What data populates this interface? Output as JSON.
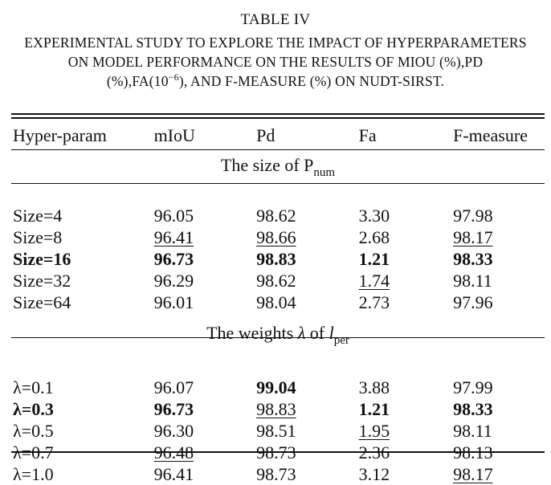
{
  "caption": {
    "title": "TABLE IV",
    "line1": "EXPERIMENTAL STUDY TO EXPLORE THE IMPACT OF HYPERPARAMETERS",
    "line2": "ON MODEL PERFORMANCE ON THE RESULTS OF MIOU (%),PD",
    "line3_pre": "(%),FA(10",
    "line3_sup": "−6",
    "line3_post": "), AND F-MEASURE (%) ON NUDT-SIRST."
  },
  "table": {
    "headers": [
      "Hyper-param",
      "mIoU",
      "Pd",
      "Fa",
      "F-measure"
    ],
    "section1": {
      "label": "The size of P",
      "sub": "num"
    },
    "section2": {
      "label_pre": "The weights ",
      "lambda": "λ",
      "label_mid": " of ",
      "l": "l",
      "sub": "per"
    },
    "rows1": [
      [
        "Size=4",
        "96.05",
        "98.62",
        "3.30",
        "97.98"
      ],
      [
        "Size=8",
        "96.41",
        "98.66",
        "2.68",
        "98.17"
      ],
      [
        "Size=16",
        "96.73",
        "98.83",
        "1.21",
        "98.33"
      ],
      [
        "Size=32",
        "96.29",
        "98.62",
        "1.74",
        "98.11"
      ],
      [
        "Size=64",
        "96.01",
        "98.04",
        "2.73",
        "97.96"
      ]
    ],
    "rows2": [
      [
        "λ=0.1",
        "96.07",
        "99.04",
        "3.88",
        "97.99"
      ],
      [
        "λ=0.3",
        "96.73",
        "98.83",
        "1.21",
        "98.33"
      ],
      [
        "λ=0.5",
        "96.30",
        "98.51",
        "1.95",
        "98.11"
      ],
      [
        "λ=0.7",
        "96.48",
        "98.73",
        "2.36",
        "98.13"
      ],
      [
        "λ=1.0",
        "96.41",
        "98.73",
        "3.12",
        "98.17"
      ]
    ]
  }
}
